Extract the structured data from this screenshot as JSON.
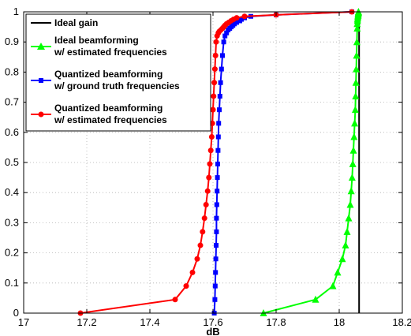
{
  "chart_data": {
    "type": "line",
    "title": "",
    "xlabel": "dB",
    "ylabel": "",
    "xlim": [
      17,
      18.2
    ],
    "ylim": [
      0,
      1
    ],
    "xticks": [
      17,
      17.2,
      17.4,
      17.6,
      17.8,
      18,
      18.2
    ],
    "yticks": [
      0,
      0.1,
      0.2,
      0.3,
      0.4,
      0.5,
      0.6,
      0.7,
      0.8,
      0.9,
      1
    ],
    "grid": true,
    "legend_position": "top-left",
    "series": [
      {
        "name": "Ideal gain",
        "color": "#000000",
        "marker": "none",
        "x": [
          18.063,
          18.063
        ],
        "y": [
          0,
          1
        ]
      },
      {
        "name": "Ideal beamforming w/ estimated frequencies",
        "color": "#00ff00",
        "marker": "triangle",
        "x": [
          17.76,
          17.925,
          17.98,
          17.995,
          18.01,
          18.02,
          18.025,
          18.03,
          18.035,
          18.038,
          18.041,
          18.043,
          18.045,
          18.047,
          18.049,
          18.051,
          18.052,
          18.053,
          18.054,
          18.055,
          18.056,
          18.057,
          18.057,
          18.058,
          18.058,
          18.059,
          18.059,
          18.06,
          18.06,
          18.06,
          18.061,
          18.061,
          18.061
        ],
        "y": [
          0,
          0.045,
          0.09,
          0.135,
          0.18,
          0.225,
          0.27,
          0.315,
          0.36,
          0.405,
          0.45,
          0.495,
          0.54,
          0.585,
          0.63,
          0.675,
          0.72,
          0.765,
          0.81,
          0.855,
          0.9,
          0.945,
          0.96,
          0.97,
          0.975,
          0.98,
          0.985,
          0.988,
          0.991,
          0.994,
          0.996,
          0.998,
          1
        ]
      },
      {
        "name": "Quantized beamforming w/ ground truth frequencies",
        "color": "#0000ff",
        "marker": "square",
        "x": [
          17.604,
          17.606,
          17.607,
          17.608,
          17.609,
          17.61,
          17.611,
          17.611,
          17.612,
          17.613,
          17.614,
          17.615,
          17.616,
          17.617,
          17.618,
          17.62,
          17.622,
          17.624,
          17.627,
          17.63,
          17.634,
          17.638,
          17.643,
          17.648,
          17.653,
          17.658,
          17.663,
          17.668,
          17.675,
          17.685,
          17.69,
          17.7,
          17.72,
          17.8,
          18.04
        ],
        "y": [
          0,
          0.045,
          0.09,
          0.135,
          0.18,
          0.225,
          0.27,
          0.315,
          0.36,
          0.405,
          0.45,
          0.495,
          0.54,
          0.585,
          0.63,
          0.675,
          0.72,
          0.765,
          0.81,
          0.855,
          0.9,
          0.92,
          0.93,
          0.94,
          0.945,
          0.95,
          0.955,
          0.96,
          0.965,
          0.97,
          0.975,
          0.98,
          0.985,
          0.99,
          1
        ]
      },
      {
        "name": "Quantized beamforming w/ estimated frequencies",
        "color": "#ff0000",
        "marker": "circle",
        "x": [
          17.18,
          17.48,
          17.515,
          17.535,
          17.55,
          17.56,
          17.567,
          17.573,
          17.578,
          17.583,
          17.587,
          17.59,
          17.593,
          17.596,
          17.598,
          17.6,
          17.602,
          17.604,
          17.606,
          17.608,
          17.61,
          17.613,
          17.617,
          17.62,
          17.625,
          17.63,
          17.634,
          17.638,
          17.643,
          17.65,
          17.657,
          17.665,
          17.675,
          17.7,
          17.8,
          18.04
        ],
        "y": [
          0,
          0.045,
          0.09,
          0.135,
          0.18,
          0.225,
          0.27,
          0.315,
          0.36,
          0.405,
          0.45,
          0.495,
          0.54,
          0.585,
          0.63,
          0.675,
          0.72,
          0.765,
          0.81,
          0.855,
          0.9,
          0.92,
          0.93,
          0.935,
          0.94,
          0.945,
          0.95,
          0.955,
          0.96,
          0.965,
          0.97,
          0.975,
          0.98,
          0.985,
          0.99,
          1
        ]
      }
    ]
  },
  "legend": {
    "items": [
      {
        "line1": "Ideal gain",
        "line2": ""
      },
      {
        "line1": "Ideal beamforming",
        "line2": "w/ estimated frequencies"
      },
      {
        "line1": "Quantized beamforming",
        "line2": "w/ ground truth frequencies"
      },
      {
        "line1": "Quantized beamforming",
        "line2": "w/ estimated frequencies"
      }
    ]
  }
}
